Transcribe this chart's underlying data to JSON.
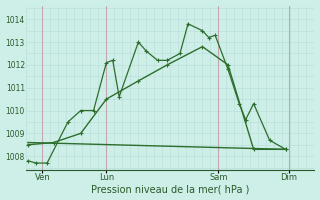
{
  "background_color": "#ceeee8",
  "grid_color_minor": "#b8ddd8",
  "grid_color_major": "#c0dcd6",
  "vline_color": "#c0a8b0",
  "line_color": "#2d6e2d",
  "xlabel": "Pression niveau de la mer( hPa )",
  "xtick_labels": [
    "Ven",
    "Lun",
    "Sam",
    "Dim"
  ],
  "ylim": [
    1007.4,
    1014.6
  ],
  "xlim": [
    0,
    9.0
  ],
  "ytick_values": [
    1008,
    1009,
    1010,
    1011,
    1012,
    1013,
    1014
  ],
  "vline_x": [
    0.5,
    2.5,
    6.0,
    8.2
  ],
  "xtick_x": [
    0.5,
    2.5,
    6.0,
    8.2
  ],
  "series1_x": [
    0.05,
    0.3,
    0.65,
    1.3,
    1.7,
    2.1,
    2.5,
    2.7,
    2.9,
    3.5,
    3.75,
    4.1,
    4.4,
    4.8,
    5.05,
    5.5,
    5.7,
    5.9,
    6.3,
    6.65,
    6.85,
    7.1,
    7.6,
    8.1
  ],
  "series1_y": [
    1007.8,
    1007.7,
    1007.7,
    1009.5,
    1010.0,
    1010.0,
    1012.1,
    1012.2,
    1010.6,
    1013.0,
    1012.6,
    1012.2,
    1012.2,
    1012.5,
    1013.8,
    1013.5,
    1013.2,
    1013.3,
    1011.8,
    1010.3,
    1009.6,
    1010.3,
    1008.7,
    1008.3
  ],
  "series2_x": [
    0.05,
    0.85,
    1.7,
    2.5,
    3.5,
    4.4,
    5.5,
    6.3,
    7.1,
    8.1
  ],
  "series2_y": [
    1008.5,
    1008.6,
    1009.0,
    1010.5,
    1011.3,
    1012.0,
    1012.8,
    1012.0,
    1008.3,
    1008.3
  ],
  "series3_x": [
    0.05,
    8.1
  ],
  "series3_y": [
    1008.6,
    1008.3
  ]
}
